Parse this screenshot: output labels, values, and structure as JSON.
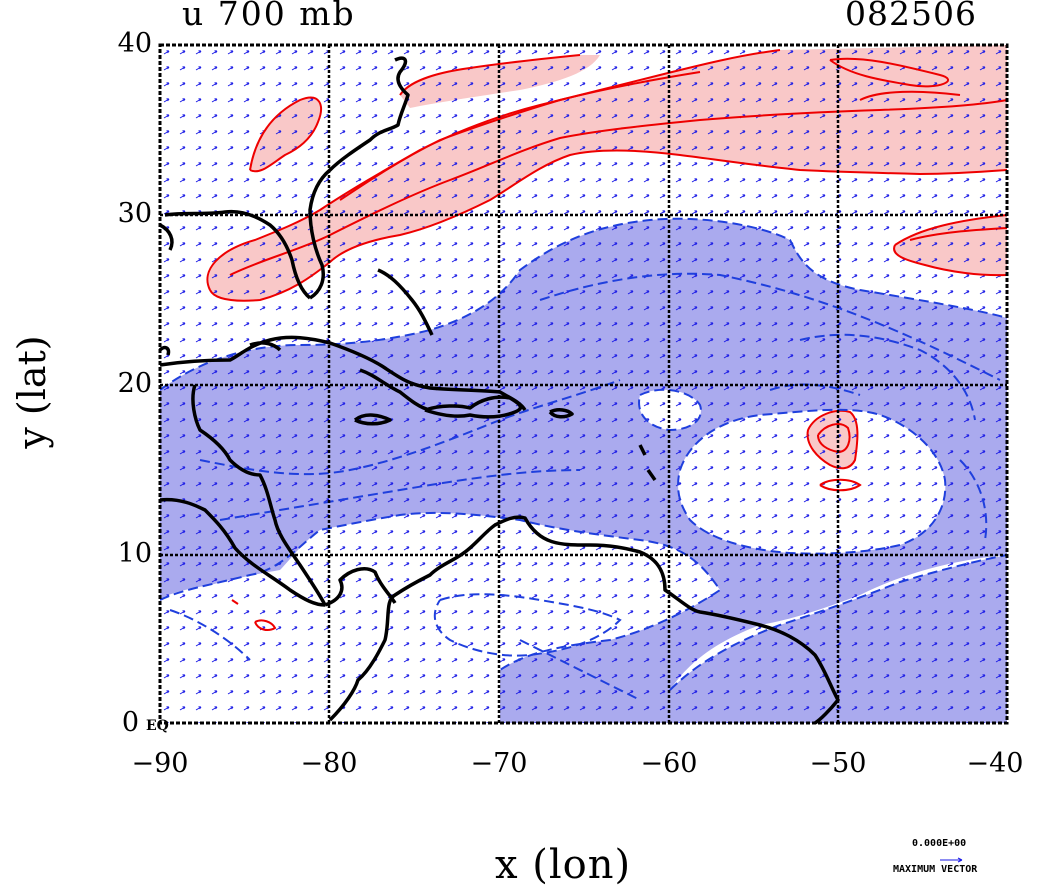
{
  "title": {
    "left": "u 700 mb",
    "right": "082506"
  },
  "axes": {
    "x_label": "x (lon)",
    "y_label": "y (lat)",
    "x_ticks": [
      "−90",
      "−80",
      "−70",
      "−60",
      "−50",
      "−40"
    ],
    "y_ticks": [
      "40",
      "30",
      "20",
      "10",
      "0"
    ],
    "equator_label": "EQ",
    "x_range": [
      -90,
      -40
    ],
    "y_range": [
      0,
      40
    ]
  },
  "legend": {
    "vector_value": "0.000E+00",
    "vector_label": "MAXIMUM VECTOR"
  },
  "colors": {
    "positive_fill": "#f9c8c8",
    "positive_contour": "#ee0000",
    "negative_fill": "#aaaaee",
    "negative_contour": "#1f3fdd",
    "coastline": "#000000",
    "vectors": "#1a1ae6",
    "grid": "#000000"
  }
}
